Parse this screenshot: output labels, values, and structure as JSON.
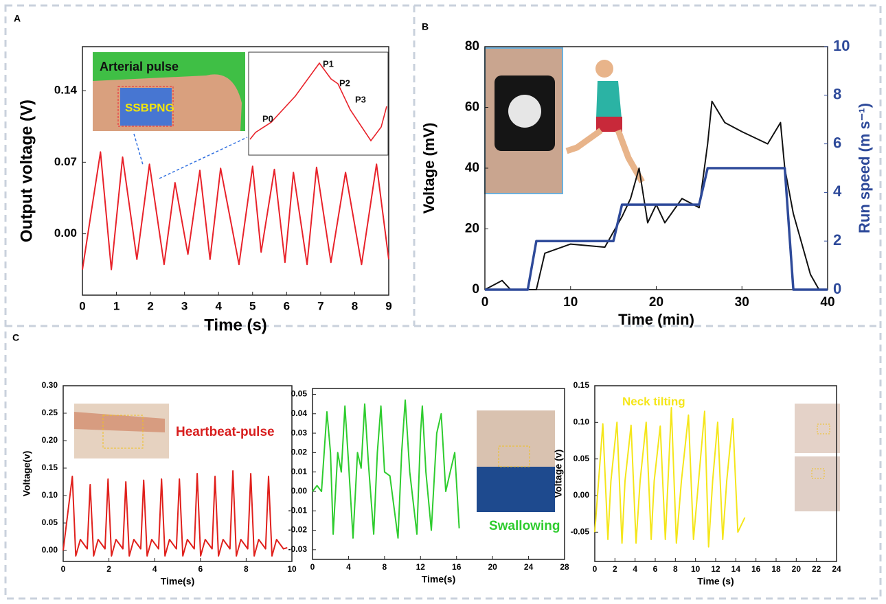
{
  "chart_data": [
    {
      "type": "line",
      "panel_label": "A",
      "xlabel": "Time (s)",
      "ylabel": "Output voltage (V)",
      "xlim": [
        0,
        9
      ],
      "xticks": [
        0,
        1,
        2,
        3,
        4,
        5,
        6,
        7,
        8,
        9
      ],
      "ylim": [
        -0.06,
        0.183
      ],
      "yticks": [
        {
          "value": 0,
          "label": "0.00"
        },
        0.07,
        0.14
      ],
      "annotations": [
        {
          "text": "Arterial pulse",
          "color": "#111111"
        },
        {
          "text": "SSBPNG",
          "color": "#f2e40c"
        },
        {
          "text": "P0",
          "color": "#111111"
        },
        {
          "text": "P1",
          "color": "#111111"
        },
        {
          "text": "P2",
          "color": "#111111"
        },
        {
          "text": "P3",
          "color": "#111111"
        }
      ],
      "x": [
        0,
        0.53,
        0.85,
        1.18,
        1.6,
        1.97,
        2.4,
        2.72,
        3.1,
        3.45,
        3.75,
        4.06,
        4.6,
        5.0,
        5.25,
        5.64,
        5.95,
        6.2,
        6.6,
        6.88,
        7.3,
        7.73,
        8.2,
        8.64,
        9.0
      ],
      "series": [
        {
          "color": "#e8222a",
          "values": [
            -0.035,
            0.08,
            -0.035,
            0.075,
            -0.025,
            0.068,
            -0.03,
            0.05,
            -0.02,
            0.062,
            -0.025,
            0.064,
            -0.03,
            0.066,
            -0.018,
            0.063,
            -0.028,
            0.06,
            -0.03,
            0.065,
            -0.028,
            0.06,
            -0.03,
            0.068,
            -0.025
          ]
        }
      ]
    },
    {
      "type": "line",
      "panel_label": "B",
      "xlabel": "Time (min)",
      "ylabel": "Voltage (mV)",
      "y2label": "Run speed (m s⁻¹)",
      "xlim": [
        0,
        40
      ],
      "xticks": [
        0,
        10,
        20,
        30,
        40
      ],
      "ylim": [
        0,
        80
      ],
      "yticks": [
        0,
        20,
        40,
        60,
        80
      ],
      "y2lim": [
        0,
        10
      ],
      "y2ticks": [
        0,
        2,
        4,
        6,
        8,
        10
      ],
      "series": [
        {
          "color": "#111111",
          "x": [
            0,
            2,
            3,
            5,
            6,
            7,
            10,
            14,
            16,
            17,
            18,
            19,
            20,
            21,
            23,
            25,
            26,
            26.5,
            28,
            30,
            33,
            34.5,
            35,
            36,
            37,
            38,
            39
          ],
          "values": [
            0,
            3,
            0,
            0,
            0,
            12,
            15,
            14,
            24,
            30,
            40,
            22,
            28,
            22,
            30,
            27,
            48,
            62,
            55,
            52,
            48,
            55,
            40,
            25,
            15,
            5,
            0
          ]
        },
        {
          "color": "#2e4a9a",
          "axis": "y2",
          "x": [
            0,
            5,
            6,
            15,
            16,
            25,
            26,
            35,
            36,
            40
          ],
          "values": [
            0,
            0,
            2,
            2,
            3.5,
            3.5,
            5,
            5,
            0,
            0
          ]
        }
      ]
    },
    {
      "type": "line",
      "panel_label": "C",
      "xlabel": "Time(s)",
      "ylabel": "Voltage(v)",
      "xlim": [
        0,
        10
      ],
      "xticks": [
        0,
        2,
        4,
        6,
        8,
        10
      ],
      "ylim": [
        -0.02,
        0.3
      ],
      "yticks": [
        {
          "value": 0,
          "label": "0.00"
        },
        0.05,
        {
          "value": 0.1,
          "label": "0.10"
        },
        0.15,
        {
          "value": 0.2,
          "label": "0.20"
        },
        0.25,
        {
          "value": 0.3,
          "label": "0.30"
        }
      ],
      "annotations": [
        {
          "text": "Heartbeat-pulse",
          "color": "#d81e1e"
        }
      ],
      "x": [
        0,
        0.4,
        0.55,
        0.75,
        1.05,
        1.18,
        1.33,
        1.53,
        1.83,
        1.96,
        2.11,
        2.31,
        2.61,
        2.74,
        2.89,
        3.09,
        3.39,
        3.52,
        3.67,
        3.87,
        4.17,
        4.3,
        4.45,
        4.65,
        4.95,
        5.08,
        5.23,
        5.43,
        5.73,
        5.86,
        6.01,
        6.21,
        6.51,
        6.64,
        6.79,
        6.99,
        7.29,
        7.42,
        7.57,
        7.77,
        8.07,
        8.2,
        8.35,
        8.55,
        8.85,
        8.98,
        9.13,
        9.33,
        9.63,
        9.8
      ],
      "series": [
        {
          "color": "#e0201c",
          "values": [
            0,
            0.135,
            -0.01,
            0.02,
            0.003,
            0.12,
            -0.01,
            0.02,
            0.003,
            0.13,
            -0.01,
            0.02,
            0.003,
            0.125,
            -0.01,
            0.02,
            0.003,
            0.128,
            -0.01,
            0.02,
            0.003,
            0.13,
            -0.01,
            0.02,
            0.003,
            0.13,
            -0.01,
            0.02,
            0.003,
            0.14,
            -0.01,
            0.02,
            0.003,
            0.135,
            -0.01,
            0.02,
            0.003,
            0.145,
            -0.01,
            0.02,
            0.003,
            0.14,
            -0.01,
            0.02,
            0.003,
            0.135,
            -0.01,
            0.02,
            0.003,
            0.005
          ]
        }
      ]
    },
    {
      "type": "line",
      "xlabel": "Time(s)",
      "xlim": [
        0,
        28
      ],
      "xticks": [
        0,
        4,
        8,
        12,
        16,
        20,
        24,
        28
      ],
      "ylim": [
        -0.035,
        0.053
      ],
      "yticks": [
        -0.03,
        -0.02,
        -0.01,
        {
          "value": 0,
          "label": "0.00"
        },
        0.01,
        0.02,
        0.03,
        0.04,
        0.05
      ],
      "annotations": [
        {
          "text": "Swallowing",
          "color": "#2ecc2e"
        }
      ],
      "x": [
        0,
        0.5,
        1,
        1.6,
        2.0,
        2.3,
        2.8,
        3.2,
        3.6,
        4.0,
        4.5,
        5.0,
        5.4,
        5.8,
        6.2,
        6.8,
        7.2,
        7.6,
        8.0,
        8.6,
        9.5,
        9.9,
        10.3,
        10.8,
        11.6,
        12.0,
        12.2,
        12.6,
        13.2,
        13.8,
        14.3,
        14.8,
        15.3,
        15.8,
        16.3
      ],
      "series": [
        {
          "color": "#2ecc2e",
          "values": [
            0,
            0.003,
            0.0,
            0.041,
            0.02,
            -0.022,
            0.02,
            0.01,
            0.044,
            0.015,
            -0.024,
            0.02,
            0.012,
            0.045,
            0.015,
            -0.022,
            0.02,
            0.044,
            0.01,
            0.008,
            -0.024,
            0.02,
            0.047,
            0.01,
            -0.022,
            0.03,
            0.044,
            0.01,
            -0.02,
            0.03,
            0.04,
            0.0,
            0.01,
            0.02,
            -0.019
          ]
        }
      ]
    },
    {
      "type": "line",
      "xlabel": "Time (s)",
      "ylabel": "Voltage (v)",
      "xlim": [
        0,
        24
      ],
      "xticks": [
        0,
        2,
        4,
        6,
        8,
        10,
        12,
        14,
        16,
        18,
        20,
        22,
        24
      ],
      "ylim": [
        -0.09,
        0.15
      ],
      "yticks": [
        -0.05,
        {
          "value": 0,
          "label": "0.00"
        },
        0.05,
        {
          "value": 0.1,
          "label": "0.10"
        },
        0.15
      ],
      "annotations": [
        {
          "text": "Neck tilting",
          "color": "#f5e61a"
        }
      ],
      "x": [
        0,
        0.8,
        1.3,
        1.6,
        2.2,
        2.7,
        3.0,
        3.6,
        4.1,
        4.5,
        5.1,
        5.6,
        5.9,
        6.5,
        7.0,
        7.6,
        8.1,
        8.6,
        9.3,
        9.8,
        10.3,
        10.9,
        11.3,
        11.7,
        12.2,
        12.7,
        13.1,
        13.7,
        14.2,
        14.9
      ],
      "series": [
        {
          "color": "#f5e61a",
          "values": [
            -0.05,
            0.098,
            -0.06,
            0.02,
            0.1,
            -0.065,
            0.02,
            0.096,
            -0.065,
            0.02,
            0.1,
            -0.06,
            0.02,
            0.095,
            -0.06,
            0.12,
            -0.065,
            0.02,
            0.11,
            -0.06,
            0.02,
            0.115,
            -0.07,
            0.02,
            0.1,
            -0.06,
            0.02,
            0.105,
            -0.05,
            -0.03
          ]
        }
      ]
    }
  ]
}
